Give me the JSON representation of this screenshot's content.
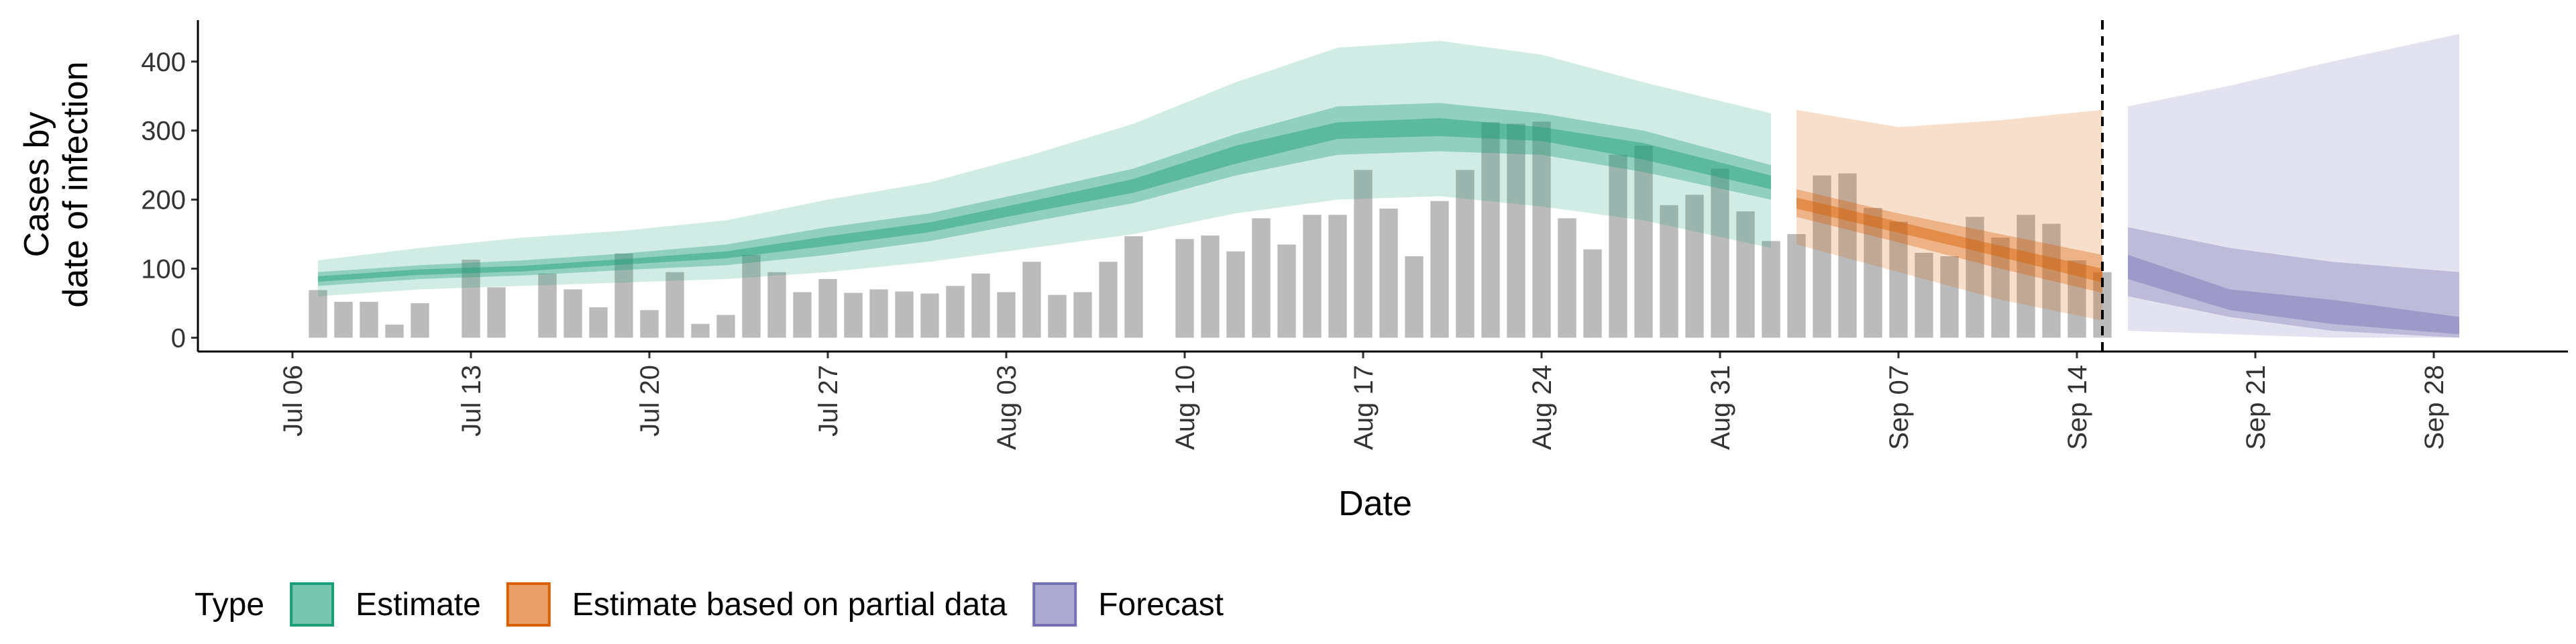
{
  "chart_data": {
    "type": "bar-ribbon",
    "xlabel": "Date",
    "ylabel": [
      "Cases by",
      "date of infection"
    ],
    "legend_title": "Type",
    "legend_position": "bottom",
    "bar_color": "#9e9e9e",
    "categories": [
      "Jul 06",
      "Jul 07",
      "Jul 08",
      "Jul 09",
      "Jul 10",
      "Jul 11",
      "Jul 12",
      "Jul 13",
      "Jul 14",
      "Jul 15",
      "Jul 16",
      "Jul 17",
      "Jul 18",
      "Jul 19",
      "Jul 20",
      "Jul 21",
      "Jul 22",
      "Jul 23",
      "Jul 24",
      "Jul 25",
      "Jul 26",
      "Jul 27",
      "Jul 28",
      "Jul 29",
      "Jul 30",
      "Jul 31",
      "Aug 01",
      "Aug 02",
      "Aug 03",
      "Aug 04",
      "Aug 05",
      "Aug 06",
      "Aug 07",
      "Aug 08",
      "Aug 09",
      "Aug 10",
      "Aug 11",
      "Aug 12",
      "Aug 13",
      "Aug 14",
      "Aug 15",
      "Aug 16",
      "Aug 17",
      "Aug 18",
      "Aug 19",
      "Aug 20",
      "Aug 21",
      "Aug 22",
      "Aug 23",
      "Aug 24",
      "Aug 25",
      "Aug 26",
      "Aug 27",
      "Aug 28",
      "Aug 29",
      "Aug 30",
      "Aug 31",
      "Sep 01",
      "Sep 02",
      "Sep 03",
      "Sep 04",
      "Sep 05",
      "Sep 06",
      "Sep 07",
      "Sep 08",
      "Sep 09",
      "Sep 10",
      "Sep 11",
      "Sep 12",
      "Sep 13",
      "Sep 14",
      "Sep 15",
      "Sep 16",
      "Sep 17",
      "Sep 18",
      "Sep 19",
      "Sep 20",
      "Sep 21",
      "Sep 22",
      "Sep 23",
      "Sep 24",
      "Sep 25",
      "Sep 26",
      "Sep 27",
      "Sep 28",
      "Sep 29"
    ],
    "values": [
      null,
      69,
      52,
      52,
      19,
      50,
      null,
      113,
      73,
      null,
      93,
      70,
      44,
      122,
      40,
      95,
      20,
      33,
      120,
      95,
      66,
      85,
      65,
      70,
      67,
      64,
      75,
      93,
      66,
      110,
      62,
      66,
      110,
      147,
      null,
      143,
      148,
      125,
      173,
      135,
      178,
      178,
      243,
      187,
      118,
      198,
      243,
      312,
      310,
      313,
      173,
      128,
      265,
      278,
      192,
      207,
      245,
      183,
      140,
      150,
      235,
      238,
      188,
      168,
      123,
      118,
      175,
      145,
      178,
      165,
      112,
      95,
      null,
      null,
      null,
      null,
      null,
      null,
      null,
      null,
      null,
      null,
      null,
      null,
      null,
      null
    ],
    "series": [
      {
        "name": "Estimate",
        "color": "#1b9e77",
        "x": [
          "Jul 07",
          "Jul 11",
          "Jul 15",
          "Jul 19",
          "Jul 23",
          "Jul 27",
          "Jul 31",
          "Aug 04",
          "Aug 08",
          "Aug 12",
          "Aug 16",
          "Aug 20",
          "Aug 24",
          "Aug 28",
          "Sep 02"
        ],
        "bands": [
          {
            "lower": [
              60,
              70,
              75,
              80,
              85,
              95,
              110,
              130,
              150,
              180,
              200,
              205,
              190,
              170,
              130
            ],
            "upper": [
              112,
              130,
              145,
              155,
              170,
              200,
              225,
              265,
              310,
              370,
              420,
              430,
              410,
              370,
              325
            ]
          },
          {
            "lower": [
              75,
              85,
              90,
              98,
              105,
              120,
              140,
              168,
              195,
              235,
              265,
              270,
              265,
              240,
              200
            ],
            "upper": [
              95,
              105,
              112,
              122,
              135,
              160,
              180,
              212,
              245,
              295,
              335,
              340,
              325,
              300,
              250
            ]
          },
          {
            "lower": [
              81,
              91,
              96,
              106,
              115,
              133,
              153,
              182,
              210,
              252,
              288,
              292,
              285,
              258,
              215
            ],
            "upper": [
              89,
              99,
              104,
              114,
              125,
              147,
              167,
              198,
              230,
              278,
              312,
              318,
              305,
              282,
              235
            ]
          }
        ]
      },
      {
        "name": "Estimate based on partial data",
        "color": "#d95f02",
        "x": [
          "Sep 03",
          "Sep 07",
          "Sep 11",
          "Sep 15"
        ],
        "bands": [
          {
            "lower": [
              135,
              95,
              55,
              25
            ],
            "upper": [
              330,
              305,
              315,
              330
            ]
          },
          {
            "lower": [
              175,
              138,
              100,
              65
            ],
            "upper": [
              215,
              180,
              150,
              120
            ]
          },
          {
            "lower": [
              187,
              152,
              117,
              80
            ],
            "upper": [
              203,
              168,
              133,
              100
            ]
          }
        ]
      },
      {
        "name": "Forecast",
        "color": "#7570b3",
        "x": [
          "Sep 16",
          "Sep 20",
          "Sep 24",
          "Sep 29"
        ],
        "bands": [
          {
            "lower": [
              10,
              5,
              0,
              0
            ],
            "upper": [
              335,
              365,
              400,
              440
            ]
          },
          {
            "lower": [
              60,
              30,
              10,
              0
            ],
            "upper": [
              160,
              130,
              110,
              95
            ]
          },
          {
            "lower": [
              85,
              40,
              20,
              5
            ],
            "upper": [
              120,
              70,
              55,
              30
            ]
          }
        ]
      }
    ],
    "vline": "Sep 15",
    "xticks": [
      "Jul 06",
      "Jul 13",
      "Jul 20",
      "Jul 27",
      "Aug 03",
      "Aug 10",
      "Aug 17",
      "Aug 24",
      "Aug 31",
      "Sep 07",
      "Sep 14",
      "Sep 21",
      "Sep 28"
    ],
    "ylim": [
      -20,
      460
    ],
    "yticks": [
      0,
      100,
      200,
      300,
      400
    ]
  }
}
